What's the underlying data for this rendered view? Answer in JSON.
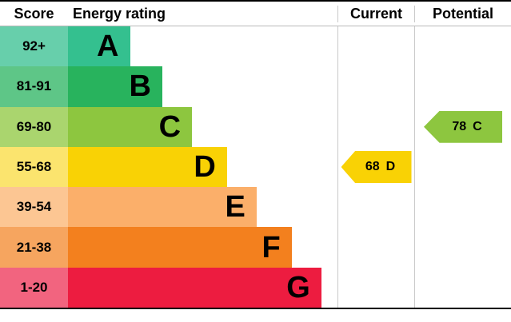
{
  "header": {
    "score": "Score",
    "energy_rating": "Energy rating",
    "current": "Current",
    "potential": "Potential"
  },
  "bands": [
    {
      "score": "92+",
      "letter": "A",
      "bar_color": "#34c08f",
      "score_color": "#67cfab",
      "width_pct": 23
    },
    {
      "score": "81-91",
      "letter": "B",
      "bar_color": "#28b35d",
      "score_color": "#5ec687",
      "width_pct": 35
    },
    {
      "score": "69-80",
      "letter": "C",
      "bar_color": "#8dc63f",
      "score_color": "#aad56e",
      "width_pct": 46
    },
    {
      "score": "55-68",
      "letter": "D",
      "bar_color": "#f9d205",
      "score_color": "#fbe46e",
      "width_pct": 59
    },
    {
      "score": "39-54",
      "letter": "E",
      "bar_color": "#fbaf6a",
      "score_color": "#fcc693",
      "width_pct": 70
    },
    {
      "score": "21-38",
      "letter": "F",
      "bar_color": "#f3801e",
      "score_color": "#f6a55f",
      "width_pct": 83
    },
    {
      "score": "1-20",
      "letter": "G",
      "bar_color": "#ed1c40",
      "score_color": "#f2647f",
      "width_pct": 94
    }
  ],
  "current": {
    "value": "68",
    "letter": "D",
    "color": "#f9d205",
    "band_index": 3
  },
  "potential": {
    "value": "78",
    "letter": "C",
    "color": "#8dc63f",
    "band_index": 2
  },
  "chart_data": {
    "type": "bar",
    "title": "Energy rating",
    "categories": [
      "A",
      "B",
      "C",
      "D",
      "E",
      "F",
      "G"
    ],
    "score_ranges": [
      "92+",
      "81-91",
      "69-80",
      "55-68",
      "39-54",
      "21-38",
      "1-20"
    ],
    "bar_relative_lengths": [
      23,
      35,
      46,
      59,
      70,
      83,
      94
    ],
    "current": {
      "score": 68,
      "band": "D"
    },
    "potential": {
      "score": 78,
      "band": "C"
    },
    "legend_position": "none",
    "grid": false
  }
}
